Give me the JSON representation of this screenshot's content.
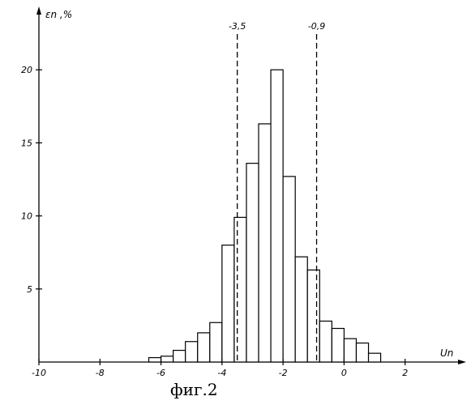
{
  "chart_data": {
    "type": "bar",
    "ylabel": "εn ,%",
    "xlabel": "Un",
    "caption": "фиг.2",
    "xlim": [
      -10,
      4
    ],
    "ylim": [
      0,
      24
    ],
    "x_ticks": [
      {
        "value": -10,
        "label": "-10"
      },
      {
        "value": -8,
        "label": "-8"
      },
      {
        "value": -6,
        "label": "-6"
      },
      {
        "value": -4,
        "label": "-4"
      },
      {
        "value": -2,
        "label": "-2"
      },
      {
        "value": 0,
        "label": "0"
      },
      {
        "value": 2,
        "label": "2"
      }
    ],
    "y_ticks": [
      {
        "value": 5,
        "label": "5"
      },
      {
        "value": 10,
        "label": "10"
      },
      {
        "value": 15,
        "label": "15"
      },
      {
        "value": 20,
        "label": "20"
      }
    ],
    "bins": [
      {
        "x0": -6.4,
        "x1": -6.0,
        "value": 0.3
      },
      {
        "x0": -6.0,
        "x1": -5.6,
        "value": 0.4
      },
      {
        "x0": -5.6,
        "x1": -5.2,
        "value": 0.8
      },
      {
        "x0": -5.2,
        "x1": -4.8,
        "value": 1.4
      },
      {
        "x0": -4.8,
        "x1": -4.4,
        "value": 2.0
      },
      {
        "x0": -4.4,
        "x1": -4.0,
        "value": 2.7
      },
      {
        "x0": -4.0,
        "x1": -3.6,
        "value": 8.0
      },
      {
        "x0": -3.6,
        "x1": -3.2,
        "value": 9.9
      },
      {
        "x0": -3.2,
        "x1": -2.8,
        "value": 13.6
      },
      {
        "x0": -2.8,
        "x1": -2.4,
        "value": 16.3
      },
      {
        "x0": -2.4,
        "x1": -2.0,
        "value": 20.0
      },
      {
        "x0": -2.0,
        "x1": -1.6,
        "value": 12.7
      },
      {
        "x0": -1.6,
        "x1": -1.2,
        "value": 7.2
      },
      {
        "x0": -1.2,
        "x1": -0.8,
        "value": 6.3
      },
      {
        "x0": -0.8,
        "x1": -0.4,
        "value": 2.8
      },
      {
        "x0": -0.4,
        "x1": 0.0,
        "value": 2.3
      },
      {
        "x0": 0.0,
        "x1": 0.4,
        "value": 1.6
      },
      {
        "x0": 0.4,
        "x1": 0.8,
        "value": 1.3
      },
      {
        "x0": 0.8,
        "x1": 1.2,
        "value": 0.6
      }
    ],
    "reference_lines": [
      {
        "x": -3.5,
        "label": "-3,5",
        "style": "dashed"
      },
      {
        "x": -0.9,
        "label": "-0,9",
        "style": "dashed"
      }
    ],
    "grid": false,
    "legend": "none"
  }
}
